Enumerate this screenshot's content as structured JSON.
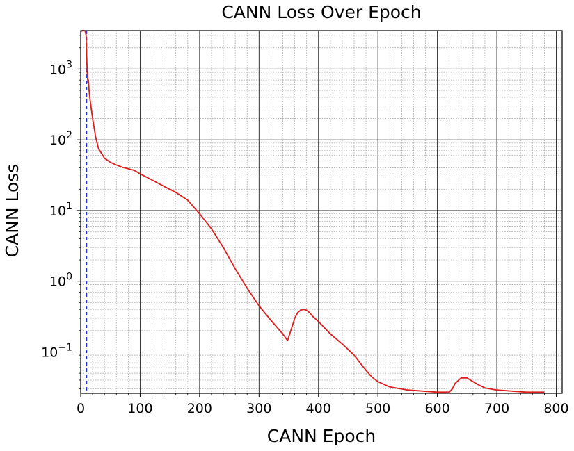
{
  "chart_data": {
    "type": "line",
    "title": "CANN Loss Over Epoch",
    "xlabel": "CANN Epoch",
    "ylabel": "CANN Loss",
    "xlim": [
      0,
      810
    ],
    "ylim": [
      0.026,
      3500
    ],
    "yscale": "log",
    "grid": "major and minor",
    "x_ticks": [
      {
        "value": 0,
        "label": "0"
      },
      {
        "value": 100,
        "label": "100"
      },
      {
        "value": 200,
        "label": "200"
      },
      {
        "value": 300,
        "label": "300"
      },
      {
        "value": 400,
        "label": "400"
      },
      {
        "value": 500,
        "label": "500"
      },
      {
        "value": 600,
        "label": "600"
      },
      {
        "value": 700,
        "label": "700"
      },
      {
        "value": 800,
        "label": "800"
      }
    ],
    "y_ticks": [
      {
        "value": 1000,
        "base": "10",
        "exp": "3"
      },
      {
        "value": 100,
        "base": "10",
        "exp": "2"
      },
      {
        "value": 10,
        "base": "10",
        "exp": "1"
      },
      {
        "value": 1,
        "base": "10",
        "exp": "0"
      },
      {
        "value": 0.1,
        "base": "10",
        "exp": "−1"
      }
    ],
    "vline": {
      "x": 10,
      "color": "#1f3bd6",
      "style": "dashed"
    },
    "series": [
      {
        "color": "#dd1c1c",
        "x": [
          1,
          3,
          5,
          8,
          9,
          10,
          11,
          12,
          13,
          14,
          16,
          20,
          25,
          30,
          40,
          50,
          60,
          70,
          80,
          90,
          100,
          120,
          140,
          160,
          180,
          200,
          220,
          240,
          260,
          280,
          300,
          320,
          340,
          348,
          355,
          360,
          365,
          370,
          375,
          380,
          385,
          390,
          400,
          420,
          440,
          460,
          470,
          480,
          490,
          500,
          520,
          550,
          600,
          620,
          625,
          630,
          640,
          650,
          660,
          670,
          680,
          700,
          750,
          780
        ],
        "y": [
          3400,
          3500,
          3500,
          3400,
          3000,
          1600,
          900,
          650,
          700,
          500,
          350,
          200,
          110,
          75,
          55,
          48,
          44,
          41,
          39,
          37,
          33,
          27,
          22,
          18,
          14,
          9,
          5.5,
          3,
          1.5,
          0.8,
          0.45,
          0.28,
          0.18,
          0.145,
          0.22,
          0.3,
          0.36,
          0.39,
          0.4,
          0.39,
          0.36,
          0.32,
          0.27,
          0.18,
          0.13,
          0.09,
          0.07,
          0.055,
          0.044,
          0.038,
          0.032,
          0.029,
          0.027,
          0.027,
          0.03,
          0.036,
          0.043,
          0.043,
          0.038,
          0.034,
          0.031,
          0.029,
          0.027,
          0.027
        ]
      }
    ]
  }
}
